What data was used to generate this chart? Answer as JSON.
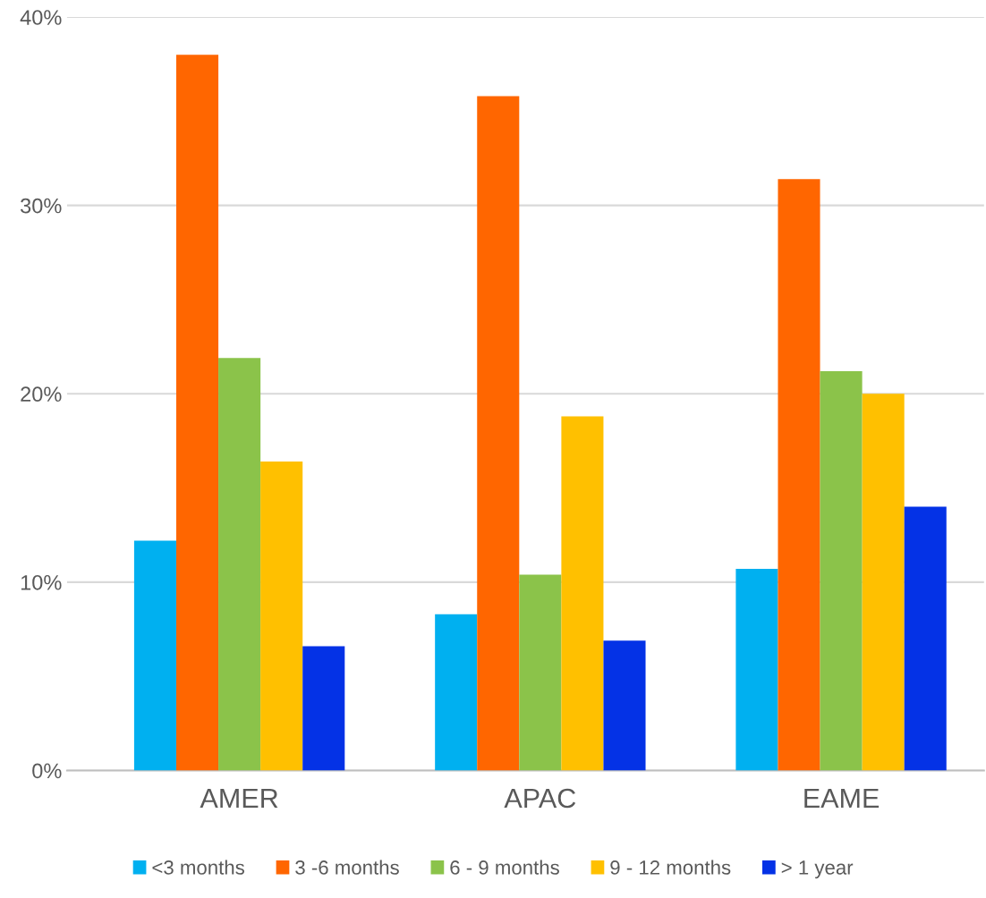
{
  "chart_data": {
    "type": "bar",
    "categories": [
      "AMER",
      "APAC",
      "EAME"
    ],
    "series": [
      {
        "name": "<3 months",
        "color": "#00b0f0",
        "values": [
          12.2,
          8.3,
          10.7
        ]
      },
      {
        "name": "3 -6 months",
        "color": "#ff6600",
        "values": [
          38.0,
          35.8,
          31.4
        ]
      },
      {
        "name": "6 - 9 months",
        "color": "#8bc34a",
        "values": [
          21.9,
          10.4,
          21.2
        ]
      },
      {
        "name": "9 - 12 months",
        "color": "#ffc000",
        "values": [
          16.4,
          18.8,
          20.0
        ]
      },
      {
        "name": "> 1 year",
        "color": "#0432e6",
        "values": [
          6.6,
          6.9,
          14.0
        ]
      }
    ],
    "ylim": [
      0,
      40
    ],
    "yticks": [
      {
        "value": 0,
        "label": "0%"
      },
      {
        "value": 10,
        "label": "10%"
      },
      {
        "value": 20,
        "label": "20%"
      },
      {
        "value": 30,
        "label": "30%"
      },
      {
        "value": 40,
        "label": "40%"
      }
    ],
    "grid": "y",
    "legend": "bottom"
  }
}
